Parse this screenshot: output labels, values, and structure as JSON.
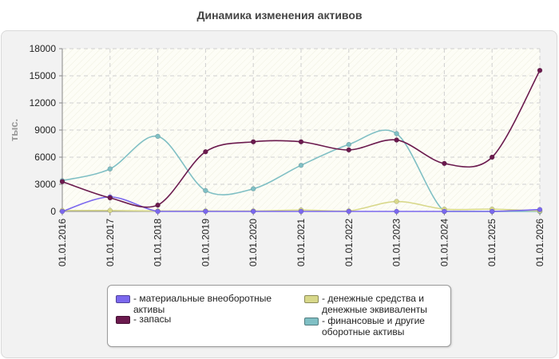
{
  "chart_data": {
    "type": "line",
    "title": "Динамика изменения активов",
    "ylabel": "тыс.",
    "xlabel": "",
    "categories": [
      "01.01.2016",
      "01.01.2017",
      "01.01.2018",
      "01.01.2019",
      "01.01.2020",
      "01.01.2021",
      "01.01.2022",
      "01.01.2023",
      "01.01.2024",
      "01.01.2025",
      "01.01.2026"
    ],
    "ylim": [
      0,
      18000
    ],
    "yticks": [
      0,
      3000,
      6000,
      9000,
      12000,
      15000,
      18000
    ],
    "grid": true,
    "legend_position": "bottom",
    "series": [
      {
        "name": "- материальные внеоборотные активы",
        "color": "#7b68ee",
        "values": [
          0,
          1600,
          0,
          0,
          0,
          0,
          0,
          0,
          0,
          0,
          200
        ]
      },
      {
        "name": "- запасы",
        "color": "#6b1a4e",
        "values": [
          3300,
          1500,
          700,
          6600,
          7700,
          7700,
          6800,
          7900,
          5300,
          6000,
          15600
        ]
      },
      {
        "name": "- денежные средства и денежные эквиваленты",
        "color": "#d8d88a",
        "values": [
          100,
          100,
          50,
          50,
          50,
          150,
          50,
          1100,
          250,
          250,
          50
        ]
      },
      {
        "name": "- финансовые и другие оборотные активы",
        "color": "#7fbfc4",
        "values": [
          3400,
          4700,
          8300,
          2300,
          2500,
          5100,
          7400,
          8600,
          0,
          0,
          0
        ]
      }
    ]
  },
  "legend": {
    "items": [
      {
        "label": "- материальные внеоборотные активы"
      },
      {
        "label": "- запасы"
      },
      {
        "label": "- денежные средства и денежные эквиваленты"
      },
      {
        "label": "- финансовые и другие оборотные активы"
      }
    ]
  }
}
